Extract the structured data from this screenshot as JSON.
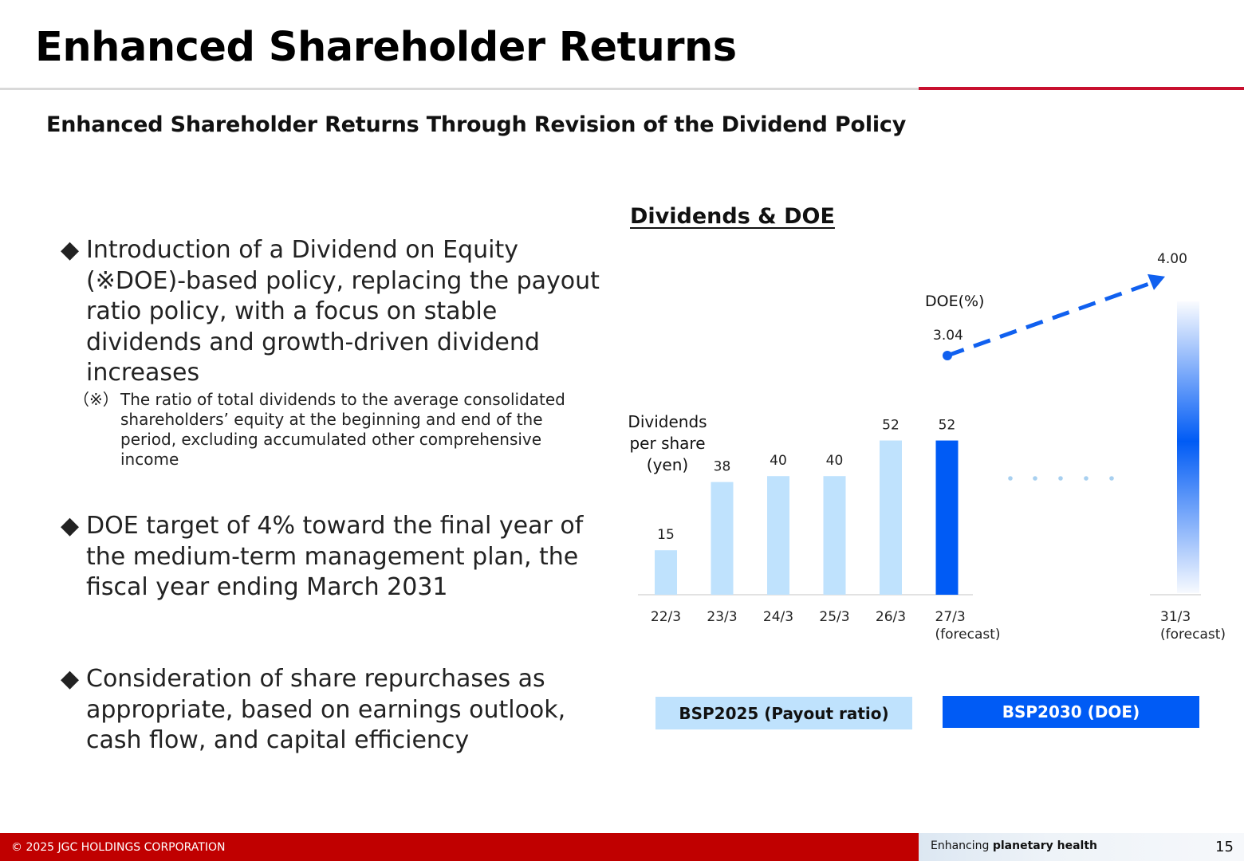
{
  "title": "Enhanced Shareholder Returns",
  "subtitle": "Enhanced Shareholder Returns Through Revision of the Dividend Policy",
  "bullets": [
    {
      "mark": "◆",
      "text": "Introduction of a Dividend on Equity (※DOE)-based policy, replacing the payout ratio policy, with a focus on stable dividends and growth-driven dividend increases"
    },
    {
      "mark": "◆",
      "text": "DOE target of 4% toward the final year of the medium-term management plan, the fiscal year ending March 2031"
    },
    {
      "mark": "◆",
      "text": "Consideration of share repurchases as appropriate, based on earnings outlook, cash flow, and capital efficiency"
    }
  ],
  "note": {
    "mark": "（※）",
    "text": "The ratio of total dividends to the average consolidated shareholders’ equity at the beginning and end of the period, excluding accumulated other comprehensive income"
  },
  "chart_title": "Dividends & DOE",
  "chart_data": {
    "type": "bar",
    "ylabel_lines": [
      "Dividends",
      "per share",
      "(yen)"
    ],
    "categories": [
      [
        "22/3"
      ],
      [
        "23/3"
      ],
      [
        "24/3"
      ],
      [
        "25/3"
      ],
      [
        "26/3"
      ],
      [
        "27/3",
        "(forecast)"
      ]
    ],
    "values": [
      15,
      38,
      40,
      40,
      52,
      52
    ],
    "value_labels": [
      "15",
      "38",
      "40",
      "40",
      "52",
      "52"
    ],
    "highlight_index": 5,
    "final_category": [
      "31/3",
      "(forecast)"
    ],
    "doe": {
      "label": "DOE(%)",
      "values": [
        3.04,
        4.0
      ],
      "value_labels": [
        "3.04",
        "4.00"
      ]
    },
    "colors": {
      "bar": "#bfe2fd",
      "highlight": "#005bf5",
      "doe_line": "#1060ef",
      "ellipsis_dots": "#a8d0f0",
      "axis": "#d9d9d9"
    }
  },
  "periods": [
    {
      "label": "BSP2025 (Payout ratio)",
      "color": "#bfe2fd"
    },
    {
      "label": "BSP2030 (DOE)",
      "color": "#005bf5"
    }
  ],
  "footer": {
    "copyright": "© 2025 JGC HOLDINGS CORPORATION",
    "tagline_prefix": "Enhancing ",
    "tagline_bold": "planetary health",
    "page": "15"
  }
}
